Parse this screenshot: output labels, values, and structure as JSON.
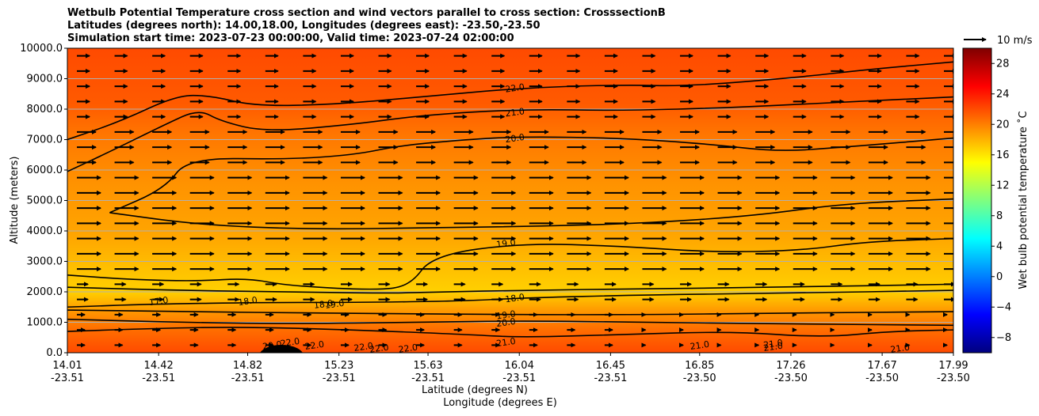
{
  "chart_data": {
    "type": "contour",
    "title": [
      "Wetbulb Potential Temperature cross section and wind vectors parallel to cross section: CrosssectionB",
      "Latitudes (degrees north): 14.00,18.00, Longitudes (degrees east): -23.50,-23.50",
      "Simulation start time: 2023-07-23 00:00:00, Valid time: 2023-07-24 02:00:00"
    ],
    "xlabel": "Latitude (degrees N)",
    "xlabel2": "Longitude (degrees E)",
    "ylabel": "Altitude (meters)",
    "x_ticks": [
      {
        "lat": "14.01",
        "lon": "-23.51"
      },
      {
        "lat": "14.42",
        "lon": "-23.51"
      },
      {
        "lat": "14.82",
        "lon": "-23.51"
      },
      {
        "lat": "15.23",
        "lon": "-23.51"
      },
      {
        "lat": "15.63",
        "lon": "-23.51"
      },
      {
        "lat": "16.04",
        "lon": "-23.51"
      },
      {
        "lat": "16.45",
        "lon": "-23.51"
      },
      {
        "lat": "16.85",
        "lon": "-23.50"
      },
      {
        "lat": "17.26",
        "lon": "-23.50"
      },
      {
        "lat": "17.67",
        "lon": "-23.50"
      },
      {
        "lat": "17.99",
        "lon": "-23.50"
      }
    ],
    "x_range": [
      14.01,
      17.99
    ],
    "y_ticks": [
      "0.0",
      "1000.0",
      "2000.0",
      "3000.0",
      "4000.0",
      "5000.0",
      "6000.0",
      "7000.0",
      "8000.0",
      "9000.0",
      "10000.0"
    ],
    "y_range": [
      0,
      10000
    ],
    "grid": "horizontal",
    "colorbar": {
      "label": "Wet bulb potential temperature $^\\circ$C",
      "label_display": "Wet bulb potential temperature ˚C",
      "ticks": [
        "−8",
        "−4",
        "0",
        "4",
        "8",
        "12",
        "16",
        "20",
        "24",
        "28"
      ],
      "range": [
        -10,
        30
      ],
      "colormap": "jet",
      "colormap_stops": [
        "#00007f",
        "#0000ff",
        "#007fff",
        "#00ffff",
        "#7fff7f",
        "#ffff00",
        "#ff7f00",
        "#ff0000",
        "#7f0000"
      ]
    },
    "quiver_key": {
      "label": "10 m/s"
    },
    "contour_labels": [
      {
        "value": "22.0",
        "lat": 16.02,
        "alt": 8700
      },
      {
        "value": "21.0",
        "lat": 16.02,
        "alt": 7900
      },
      {
        "value": "20.0",
        "lat": 16.02,
        "alt": 7050
      },
      {
        "value": "19.0",
        "lat": 15.98,
        "alt": 3600
      },
      {
        "value": "18.0",
        "lat": 16.02,
        "alt": 1800
      },
      {
        "value": "19.0",
        "lat": 15.98,
        "alt": 1250
      },
      {
        "value": "20.0",
        "lat": 15.98,
        "alt": 1000
      },
      {
        "value": "21.0",
        "lat": 15.98,
        "alt": 350
      },
      {
        "value": "21.0",
        "lat": 16.85,
        "alt": 250
      },
      {
        "value": "21.0",
        "lat": 17.18,
        "alt": 200
      },
      {
        "value": "21.0",
        "lat": 17.18,
        "alt": 300
      },
      {
        "value": "21.0",
        "lat": 17.75,
        "alt": 150
      },
      {
        "value": "17.0",
        "lat": 14.42,
        "alt": 1700
      },
      {
        "value": "18.0",
        "lat": 14.82,
        "alt": 1700
      },
      {
        "value": "18.0",
        "lat": 15.16,
        "alt": 1600
      },
      {
        "value": "19.0",
        "lat": 15.21,
        "alt": 1600
      },
      {
        "value": "20.0",
        "lat": 14.93,
        "alt": 250
      },
      {
        "value": "22.0",
        "lat": 15.01,
        "alt": 350
      },
      {
        "value": "22.0",
        "lat": 15.12,
        "alt": 250
      },
      {
        "value": "22.0",
        "lat": 15.34,
        "alt": 200
      },
      {
        "value": "22.0",
        "lat": 15.41,
        "alt": 150
      },
      {
        "value": "22.0",
        "lat": 15.54,
        "alt": 150
      }
    ],
    "contour_lines": [
      {
        "level": 22,
        "points": [
          [
            14.01,
            7000
          ],
          [
            14.25,
            7600
          ],
          [
            14.5,
            8450
          ],
          [
            14.65,
            8450
          ],
          [
            14.85,
            8100
          ],
          [
            15.2,
            8150
          ],
          [
            15.6,
            8400
          ],
          [
            16.05,
            8700
          ],
          [
            16.5,
            8800
          ],
          [
            16.8,
            8750
          ],
          [
            17.3,
            9050
          ],
          [
            17.6,
            9300
          ],
          [
            17.99,
            9550
          ]
        ]
      },
      {
        "level": 21,
        "points": [
          [
            14.01,
            5950
          ],
          [
            14.2,
            6600
          ],
          [
            14.45,
            7500
          ],
          [
            14.6,
            8000
          ],
          [
            14.7,
            7600
          ],
          [
            14.9,
            7250
          ],
          [
            15.3,
            7500
          ],
          [
            15.6,
            7800
          ],
          [
            16.05,
            8000
          ],
          [
            16.5,
            7950
          ],
          [
            17.0,
            8050
          ],
          [
            17.4,
            8200
          ],
          [
            17.99,
            8400
          ]
        ]
      },
      {
        "level": 20,
        "points": [
          [
            14.2,
            4600
          ],
          [
            14.45,
            5400
          ],
          [
            14.55,
            6400
          ],
          [
            15.0,
            6350
          ],
          [
            15.3,
            6500
          ],
          [
            15.5,
            6800
          ],
          [
            15.8,
            7000
          ],
          [
            16.05,
            7100
          ],
          [
            16.5,
            7050
          ],
          [
            16.9,
            6850
          ],
          [
            17.2,
            6600
          ],
          [
            17.5,
            6750
          ],
          [
            17.99,
            7050
          ]
        ]
      },
      {
        "level": 20,
        "points": [
          [
            14.2,
            4600
          ],
          [
            14.6,
            4200
          ],
          [
            15.1,
            4050
          ],
          [
            15.6,
            4100
          ],
          [
            16.1,
            4150
          ],
          [
            16.6,
            4250
          ],
          [
            17.1,
            4500
          ],
          [
            17.5,
            4900
          ],
          [
            17.99,
            5050
          ]
        ]
      },
      {
        "level": 19,
        "points": [
          [
            14.01,
            2550
          ],
          [
            14.3,
            2400
          ],
          [
            14.6,
            2350
          ],
          [
            14.82,
            2450
          ],
          [
            15.0,
            2200
          ],
          [
            15.4,
            2050
          ],
          [
            15.55,
            2200
          ],
          [
            15.65,
            3200
          ],
          [
            16.05,
            3600
          ],
          [
            16.5,
            3500
          ],
          [
            16.9,
            3300
          ],
          [
            17.3,
            3350
          ],
          [
            17.6,
            3650
          ],
          [
            17.99,
            3750
          ]
        ]
      },
      {
        "level": 19,
        "points": [
          [
            14.01,
            2150
          ],
          [
            14.5,
            2050
          ],
          [
            15.0,
            2000
          ],
          [
            15.45,
            1950
          ],
          [
            15.7,
            2000
          ],
          [
            16.05,
            2050
          ],
          [
            16.6,
            2100
          ],
          [
            17.2,
            2150
          ],
          [
            17.99,
            2250
          ]
        ]
      },
      {
        "level": 18,
        "points": [
          [
            14.01,
            1500
          ],
          [
            14.4,
            1600
          ],
          [
            14.9,
            1650
          ],
          [
            15.3,
            1650
          ],
          [
            15.8,
            1700
          ],
          [
            16.05,
            1800
          ],
          [
            16.6,
            1900
          ],
          [
            17.2,
            1950
          ],
          [
            17.99,
            2050
          ]
        ]
      },
      {
        "level": 19,
        "points": [
          [
            14.01,
            1400
          ],
          [
            14.6,
            1350
          ],
          [
            15.1,
            1300
          ],
          [
            15.6,
            1280
          ],
          [
            16.05,
            1250
          ],
          [
            16.6,
            1250
          ],
          [
            17.2,
            1300
          ],
          [
            17.99,
            1350
          ]
        ]
      },
      {
        "level": 20,
        "points": [
          [
            14.01,
            1100
          ],
          [
            14.5,
            1000
          ],
          [
            15.0,
            950
          ],
          [
            15.6,
            1000
          ],
          [
            16.05,
            1050
          ],
          [
            16.6,
            1000
          ],
          [
            17.2,
            950
          ],
          [
            17.99,
            900
          ]
        ]
      },
      {
        "level": 21,
        "points": [
          [
            14.01,
            700
          ],
          [
            14.4,
            800
          ],
          [
            14.8,
            850
          ],
          [
            15.3,
            750
          ],
          [
            15.8,
            600
          ],
          [
            16.05,
            500
          ],
          [
            16.5,
            600
          ],
          [
            17.0,
            700
          ],
          [
            17.4,
            500
          ],
          [
            17.7,
            700
          ],
          [
            17.99,
            750
          ]
        ]
      }
    ],
    "wind_vectors": "eastward (parallel to section), strongest near 3000-6000 m"
  }
}
